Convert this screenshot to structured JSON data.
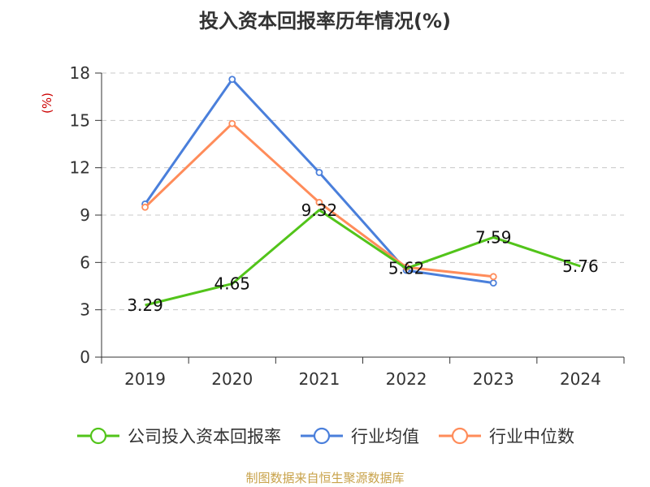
{
  "chart_data": {
    "type": "line",
    "title": "投入资本回报率历年情况(%)",
    "ylabel": "(%)",
    "xlabel": "",
    "categories": [
      "2019",
      "2020",
      "2021",
      "2022",
      "2023",
      "2024"
    ],
    "yticks": [
      0,
      3,
      6,
      9,
      12,
      15,
      18
    ],
    "ylim": [
      0,
      18
    ],
    "grid": "horizontal dashed",
    "legend_position": "bottom",
    "series": [
      {
        "name": "公司投入资本回报率",
        "color": "#52c41a",
        "marker": "none",
        "show_labels": true,
        "values": [
          3.29,
          4.65,
          9.32,
          5.62,
          7.59,
          5.76
        ],
        "labels": [
          "3.29",
          "4.65",
          "9.32",
          "5.62",
          "7.59",
          "5.76"
        ]
      },
      {
        "name": "行业均值",
        "color": "#4a7fdb",
        "marker": "circle",
        "show_labels": false,
        "values": [
          9.7,
          17.6,
          11.7,
          5.5,
          4.7,
          null
        ]
      },
      {
        "name": "行业中位数",
        "color": "#ff8c5a",
        "marker": "circle",
        "show_labels": false,
        "values": [
          9.5,
          14.8,
          9.8,
          5.7,
          5.1,
          null
        ]
      }
    ]
  },
  "source_note": "制图数据来自恒生聚源数据库"
}
